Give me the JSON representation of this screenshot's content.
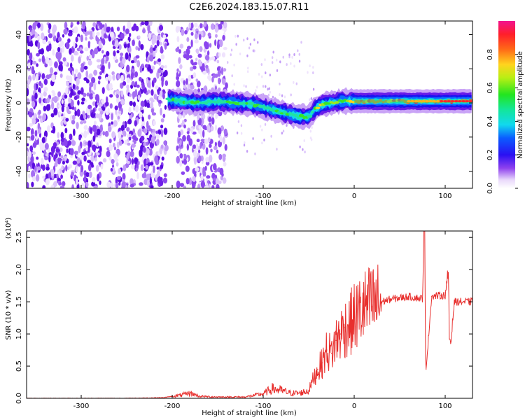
{
  "title": "C2E6.2024.183.15.07.R11",
  "chart_data": [
    {
      "type": "heatmap",
      "xlabel": "Height of straight line (km)",
      "ylabel": "Frequency (Hz)",
      "xlim": [
        -360,
        130
      ],
      "ylim": [
        -50,
        48
      ],
      "xticks": [
        -300,
        -200,
        -100,
        0,
        100
      ],
      "yticks": [
        -40,
        -20,
        0,
        20,
        40
      ],
      "grid": false,
      "colorbar": {
        "label": "Normalized spectral amplitude",
        "range": [
          0.0,
          1.0
        ],
        "ticks": [
          "0.0",
          "0.2",
          "0.4",
          "0.6",
          "0.8"
        ]
      },
      "ridge": {
        "x": [
          -205,
          -190,
          -170,
          -150,
          -130,
          -110,
          -90,
          -75,
          -60,
          -50,
          -42,
          -35,
          -25,
          -15,
          0,
          20,
          50,
          80,
          100,
          130
        ],
        "freq": [
          2,
          1,
          0,
          1,
          0,
          -1,
          -4,
          -6,
          -8,
          -8,
          -3,
          -1,
          0,
          1,
          1,
          1,
          1,
          1,
          1,
          1
        ]
      },
      "noise_region": [
        -360,
        -140
      ]
    },
    {
      "type": "line",
      "xlabel": "Height of straight line (km)",
      "ylabel": "SNR (10 * v/v)",
      "y_multiplier": "(x10⁴)",
      "xlim": [
        -360,
        130
      ],
      "ylim": [
        0.0,
        2.6
      ],
      "xticks": [
        -300,
        -200,
        -100,
        0,
        100
      ],
      "yticks": [
        "0.0",
        "0.5",
        "1.0",
        "1.5",
        "2.0",
        "2.5"
      ],
      "grid": false,
      "color": "#e8302e",
      "series": [
        {
          "x": [
            -360,
            -250,
            -210,
            -190,
            -180,
            -170,
            -150,
            -120,
            -100,
            -90,
            -80,
            -70,
            -60,
            -50,
            -45,
            -40,
            -35,
            -30,
            -25,
            -20,
            -15,
            -10,
            -5,
            0,
            10,
            20,
            30,
            40,
            50,
            60,
            70,
            75,
            77,
            79,
            85,
            95,
            100,
            103,
            106,
            110,
            120,
            130
          ],
          "y": [
            0.0,
            0.0,
            0.01,
            0.05,
            0.08,
            0.03,
            0.02,
            0.02,
            0.07,
            0.15,
            0.12,
            0.08,
            0.08,
            0.12,
            0.3,
            0.45,
            0.55,
            0.75,
            0.7,
            0.9,
            1.0,
            1.1,
            1.15,
            1.25,
            1.4,
            1.45,
            1.5,
            1.54,
            1.56,
            1.58,
            1.56,
            1.55,
            2.6,
            0.45,
            1.58,
            1.6,
            1.6,
            1.95,
            0.85,
            1.5,
            1.5,
            1.5
          ]
        }
      ]
    }
  ]
}
